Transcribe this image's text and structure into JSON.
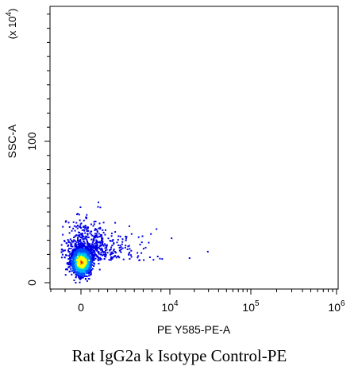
{
  "chart_data": {
    "type": "scatter",
    "title": "Rat IgG2a k Isotype Control-PE",
    "xlabel": "PE Y585-PE-A",
    "ylabel": "SSC-A",
    "y_multiplier_label": "(x 10^4)",
    "x_scale": "biexponential",
    "y_scale": "linear",
    "x_tick_labels": [
      {
        "value": 0,
        "base": "0",
        "exponent": ""
      },
      {
        "value": 10000,
        "base": "10",
        "exponent": "4"
      },
      {
        "value": 100000,
        "base": "10",
        "exponent": "5"
      },
      {
        "value": 1000000,
        "base": "10",
        "exponent": "6"
      }
    ],
    "y_tick_labels": [
      {
        "value": 0,
        "label": "0"
      },
      {
        "value": 100,
        "label": "100"
      }
    ],
    "ylim": [
      -8,
      200
    ],
    "grid": false,
    "density_colors": [
      "#0000e6",
      "#0050ff",
      "#00b4ff",
      "#00e6c8",
      "#40ff40",
      "#ffff00",
      "#ff8000",
      "#e60000"
    ],
    "population": {
      "center_x": 0,
      "center_y": 15,
      "note_units": "x in PE fluorescence units, y in SSC-A (x10^4)"
    }
  }
}
